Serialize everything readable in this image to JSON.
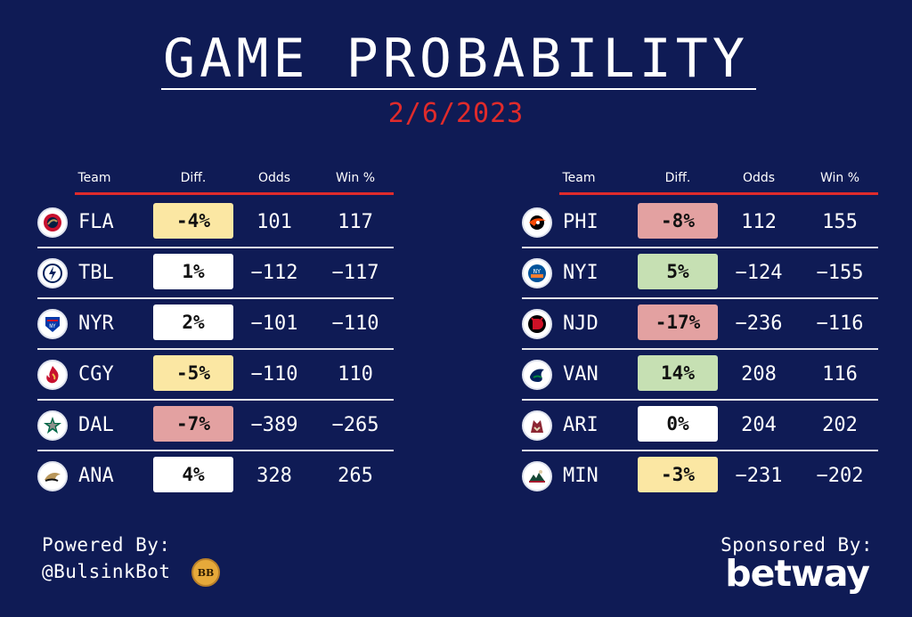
{
  "title": "GAME PROBABILITY",
  "date": "2/6/2023",
  "headers": {
    "team": "Team",
    "diff": "Diff.",
    "odds": "Odds",
    "win": "Win %"
  },
  "colors": {
    "background": "#0f1b55",
    "accent": "#e02b2b",
    "yellow": "#fbe7a3",
    "red": "#e3a1a1",
    "green": "#c6e0b3",
    "white": "#ffffff"
  },
  "left_games": [
    {
      "team": "FLA",
      "diff": "-4%",
      "odds": "101",
      "win": "117",
      "color": "yellow",
      "logo": "panthers-logo"
    },
    {
      "team": "TBL",
      "diff": "1%",
      "odds": "−112",
      "win": "−117",
      "color": "white",
      "logo": "lightning-logo"
    },
    {
      "team": "NYR",
      "diff": "2%",
      "odds": "−101",
      "win": "−110",
      "color": "white",
      "logo": "rangers-logo"
    },
    {
      "team": "CGY",
      "diff": "-5%",
      "odds": "−110",
      "win": "110",
      "color": "yellow",
      "logo": "flames-logo"
    },
    {
      "team": "DAL",
      "diff": "-7%",
      "odds": "−389",
      "win": "−265",
      "color": "red",
      "logo": "stars-logo"
    },
    {
      "team": "ANA",
      "diff": "4%",
      "odds": "328",
      "win": "265",
      "color": "white",
      "logo": "ducks-logo"
    }
  ],
  "right_games": [
    {
      "team": "PHI",
      "diff": "-8%",
      "odds": "112",
      "win": "155",
      "color": "red",
      "logo": "flyers-logo"
    },
    {
      "team": "NYI",
      "diff": "5%",
      "odds": "−124",
      "win": "−155",
      "color": "green",
      "logo": "islanders-logo"
    },
    {
      "team": "NJD",
      "diff": "-17%",
      "odds": "−236",
      "win": "−116",
      "color": "red",
      "logo": "devils-logo"
    },
    {
      "team": "VAN",
      "diff": "14%",
      "odds": "208",
      "win": "116",
      "color": "green",
      "logo": "canucks-logo"
    },
    {
      "team": "ARI",
      "diff": "0%",
      "odds": "204",
      "win": "202",
      "color": "white",
      "logo": "coyotes-logo"
    },
    {
      "team": "MIN",
      "diff": "-3%",
      "odds": "−231",
      "win": "−202",
      "color": "yellow",
      "logo": "wild-logo"
    }
  ],
  "footer": {
    "powered_by": "Powered By:",
    "handle": "@BulsinkBot",
    "sponsored_by": "Sponsored By:",
    "sponsor": "betway"
  }
}
